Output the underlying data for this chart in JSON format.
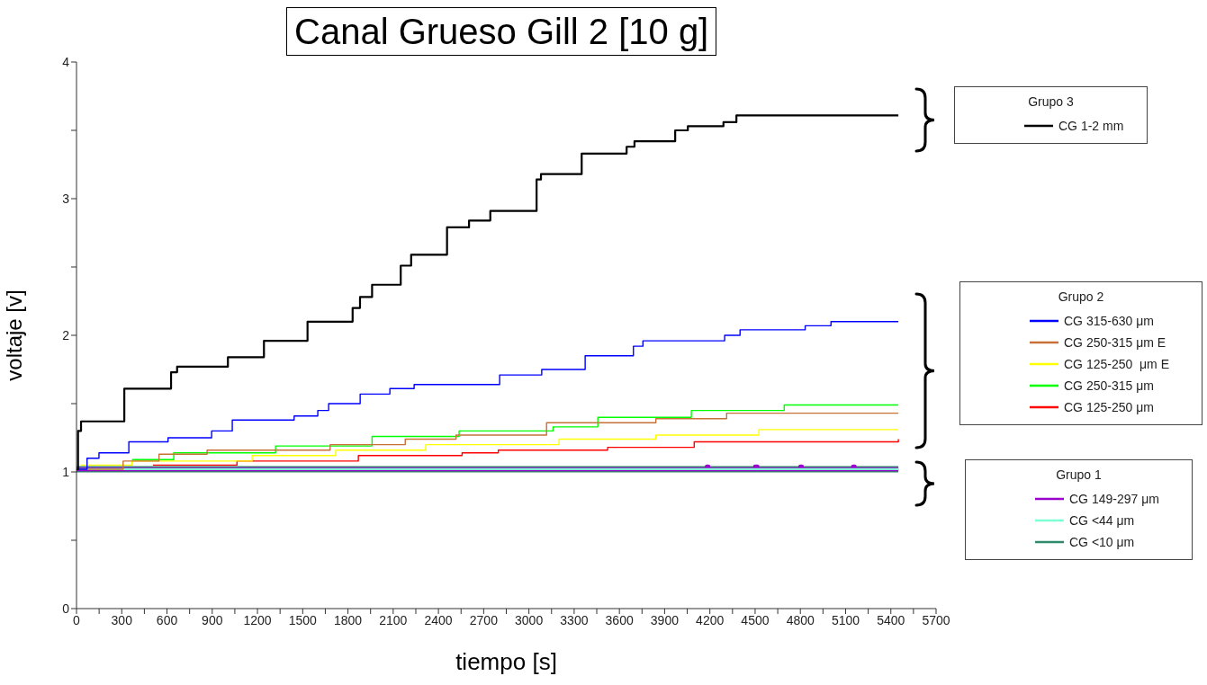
{
  "chart_data": {
    "type": "step",
    "title": "Canal Grueso Gill 2 [10 g]",
    "xlabel": "tiempo [s]",
    "ylabel": "voltaje [v]",
    "annotations": [
      "Grupo 3",
      "Grupo 2",
      "Grupo 1"
    ],
    "xlim": [
      0,
      5700
    ],
    "ylim": [
      0,
      4
    ],
    "xticks": [
      0,
      {
        "value": 150,
        "label": null
      },
      300,
      {
        "value": 450,
        "label": null
      },
      600,
      {
        "value": 750,
        "label": null
      },
      900,
      {
        "value": 1050,
        "label": null
      },
      1200,
      {
        "value": 1350,
        "label": null
      },
      1500,
      {
        "value": 1650,
        "label": null
      },
      1800,
      {
        "value": 1950,
        "label": null
      },
      2100,
      {
        "value": 2250,
        "label": null
      },
      2400,
      {
        "value": 2550,
        "label": null
      },
      2700,
      {
        "value": 2850,
        "label": null
      },
      3000,
      {
        "value": 3150,
        "label": null
      },
      3300,
      {
        "value": 3450,
        "label": null
      },
      3600,
      {
        "value": 3750,
        "label": null
      },
      3900,
      {
        "value": 4050,
        "label": null
      },
      4200,
      {
        "value": 4350,
        "label": null
      },
      4500,
      {
        "value": 4650,
        "label": null
      },
      4800,
      {
        "value": 4950,
        "label": null
      },
      5100,
      {
        "value": 5250,
        "label": null
      },
      5400,
      {
        "value": 5550,
        "label": null
      },
      5700
    ],
    "yticks": [
      0,
      {
        "value": 0.5,
        "label": null
      },
      1,
      {
        "value": 1.5,
        "label": null
      },
      2,
      {
        "value": 2.5,
        "label": null
      },
      3,
      {
        "value": 3.5,
        "label": null
      },
      4
    ],
    "grid": false,
    "legend": "right",
    "marker": "none",
    "line_style": "solid",
    "series": [
      {
        "name": "CG 1-2 mm",
        "color": "#000000",
        "x": [
          0,
          10,
          30,
          317,
          627,
          667,
          1004,
          1243,
          1532,
          1831,
          1880,
          1960,
          2150,
          2219,
          2457,
          2603,
          2744,
          3051,
          3080,
          3350,
          3648,
          3700,
          3970,
          4054,
          4290,
          4376,
          5450
        ],
        "values": [
          1.02,
          1.3,
          1.37,
          1.61,
          1.73,
          1.77,
          1.84,
          1.96,
          2.1,
          2.2,
          2.28,
          2.37,
          2.51,
          2.59,
          2.79,
          2.84,
          2.91,
          3.14,
          3.18,
          3.33,
          3.38,
          3.42,
          3.5,
          3.53,
          3.56,
          3.61,
          3.61
        ]
      },
      {
        "name": "CG 315-630 μm",
        "color": "#0000ff",
        "x": [
          0,
          70,
          149,
          347,
          607,
          896,
          1033,
          1443,
          1600,
          1672,
          1881,
          2078,
          2239,
          2806,
          3085,
          3373,
          3693,
          3756,
          4298,
          4400,
          4832,
          5003,
          5450
        ],
        "values": [
          1.02,
          1.1,
          1.14,
          1.22,
          1.25,
          1.3,
          1.38,
          1.41,
          1.45,
          1.5,
          1.57,
          1.61,
          1.64,
          1.71,
          1.75,
          1.85,
          1.92,
          1.96,
          2.0,
          2.04,
          2.07,
          2.1,
          2.1
        ]
      },
      {
        "name": "CG 250-315 μm E",
        "color": "#c87137",
        "x": [
          0,
          309,
          547,
          866,
          1682,
          2180,
          2517,
          3117,
          3842,
          4311,
          5450
        ],
        "values": [
          1.02,
          1.08,
          1.13,
          1.16,
          1.2,
          1.24,
          1.27,
          1.36,
          1.39,
          1.43,
          1.43
        ]
      },
      {
        "name": "CG 125-250  μm E",
        "color": "#ffff00",
        "x": [
          30,
          368,
          1164,
          1719,
          2316,
          3200,
          3842,
          4525,
          5450
        ],
        "values": [
          1.05,
          1.08,
          1.12,
          1.16,
          1.2,
          1.24,
          1.27,
          1.31,
          1.31
        ]
      },
      {
        "name": "CG 250-315 μm",
        "color": "#00ff00",
        "x": [
          368,
          645,
          1320,
          1960,
          2537,
          3160,
          3457,
          4077,
          4693,
          5450
        ],
        "values": [
          1.09,
          1.14,
          1.19,
          1.26,
          1.3,
          1.33,
          1.4,
          1.45,
          1.49,
          1.49
        ]
      },
      {
        "name": "CG 125-250 μm",
        "color": "#ff0000",
        "x": [
          507,
          1064,
          1869,
          2557,
          2797,
          3522,
          4096,
          5450
        ],
        "values": [
          1.05,
          1.08,
          1.12,
          1.14,
          1.16,
          1.18,
          1.22,
          1.24
        ]
      },
      {
        "name": "CG 149-297 μm",
        "color": "#9900cc",
        "x": [
          0,
          4180,
          4190,
          4500,
          4515,
          4800,
          4810,
          5150,
          5160,
          5450
        ],
        "values": [
          1.02,
          1.04,
          1.02,
          1.04,
          1.02,
          1.04,
          1.02,
          1.04,
          1.02,
          1.02
        ]
      },
      {
        "name": "CG <44 μm",
        "color": "#7fffd4",
        "x": [
          0,
          5450
        ],
        "values": [
          1.02,
          1.02
        ]
      },
      {
        "name": "CG <10 μm",
        "color": "#2e8b6a",
        "x": [
          0,
          5450
        ],
        "values": [
          1.02,
          1.02
        ]
      }
    ]
  }
}
